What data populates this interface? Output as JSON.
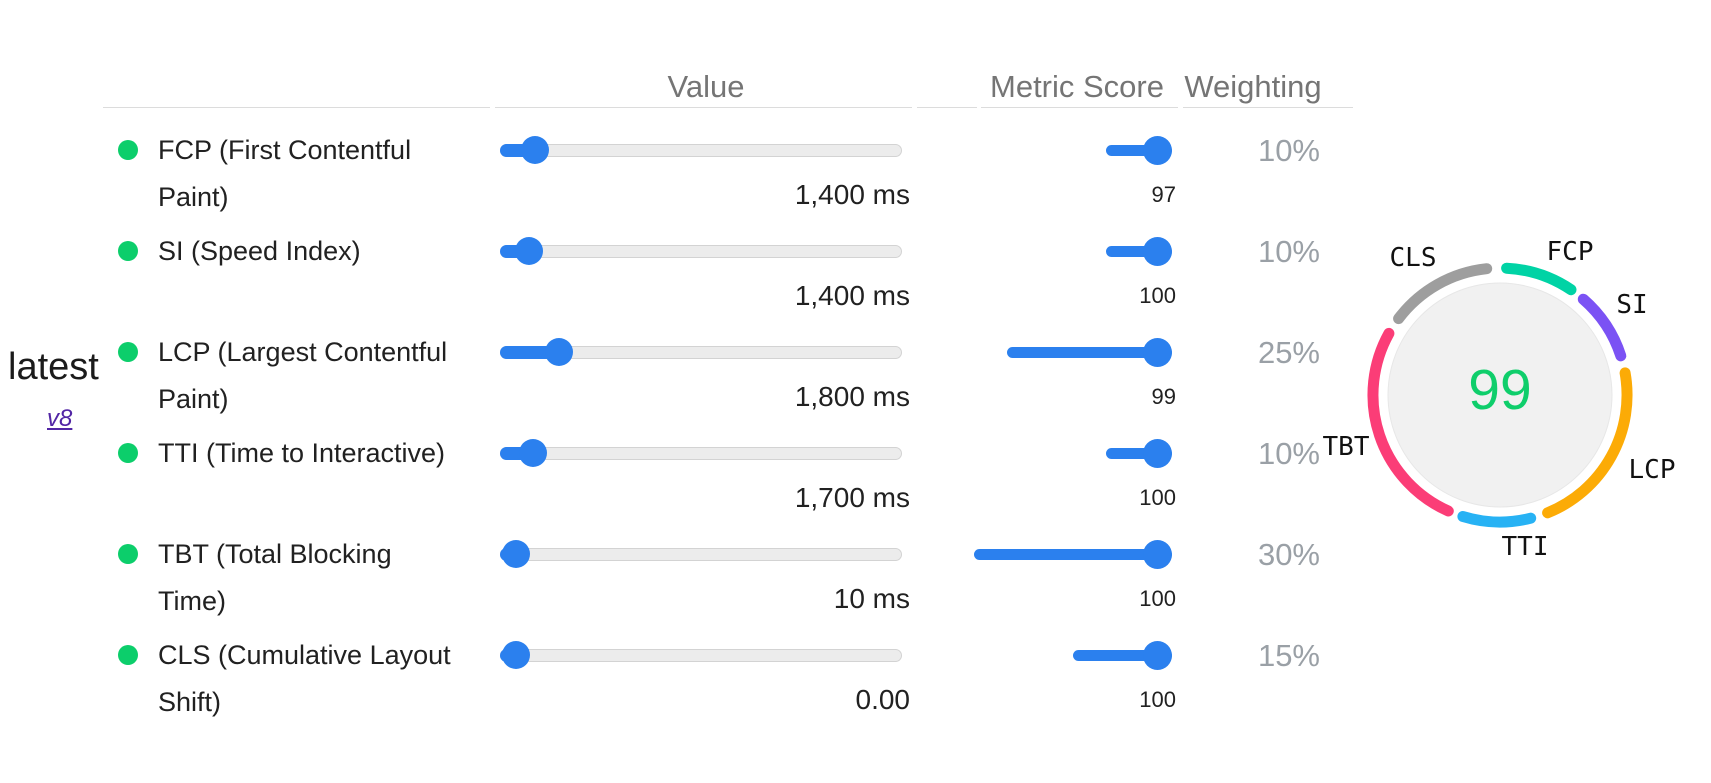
{
  "page": {
    "latest_label": "latest",
    "version_link": "v8"
  },
  "colors": {
    "slider_blue": "#2b80ee",
    "metric_pass_green": "#0cce6b",
    "gauge_score_green": "#0fce6b"
  },
  "table": {
    "headers": {
      "value": "Value",
      "metric_score": "Metric Score",
      "weighting": "Weighting"
    },
    "rows": [
      {
        "id": "fcp",
        "label_lines": [
          "FCP (First Contentful",
          "Paint)"
        ],
        "value": "1,400 ms",
        "score": "97",
        "weighting": "10%",
        "weight_num": 10,
        "value_percent": 5.5
      },
      {
        "id": "si",
        "label_lines": [
          "SI (Speed Index)"
        ],
        "value": "1,400 ms",
        "score": "100",
        "weighting": "10%",
        "weight_num": 10,
        "value_percent": 4
      },
      {
        "id": "lcp",
        "label_lines": [
          "LCP (Largest Contentful",
          "Paint)"
        ],
        "value": "1,800 ms",
        "score": "99",
        "weighting": "25%",
        "weight_num": 25,
        "value_percent": 12
      },
      {
        "id": "tti",
        "label_lines": [
          "TTI (Time to Interactive)"
        ],
        "value": "1,700 ms",
        "score": "100",
        "weighting": "10%",
        "weight_num": 10,
        "value_percent": 5
      },
      {
        "id": "tbt",
        "label_lines": [
          "TBT (Total Blocking",
          "Time)"
        ],
        "value": "10 ms",
        "score": "100",
        "weighting": "30%",
        "weight_num": 30,
        "value_percent": 0.5
      },
      {
        "id": "cls",
        "label_lines": [
          "CLS (Cumulative Layout",
          "Shift)"
        ],
        "value": "0.00",
        "score": "100",
        "weighting": "15%",
        "weight_num": 15,
        "value_percent": 0.5
      }
    ]
  },
  "gauge": {
    "score": "99",
    "segments": [
      {
        "label": "FCP",
        "color": "#00d3a5",
        "start": 3,
        "end": 34
      },
      {
        "label": "SI",
        "color": "#7b52f4",
        "start": 41,
        "end": 72
      },
      {
        "label": "LCP",
        "color": "#fcab06",
        "start": 80,
        "end": 158
      },
      {
        "label": "TTI",
        "color": "#27b2f4",
        "start": 166,
        "end": 197
      },
      {
        "label": "TBT",
        "color": "#fb3d77",
        "start": 204,
        "end": 299
      },
      {
        "label": "CLS",
        "color": "#9e9e9e",
        "start": 307,
        "end": 354
      }
    ]
  }
}
